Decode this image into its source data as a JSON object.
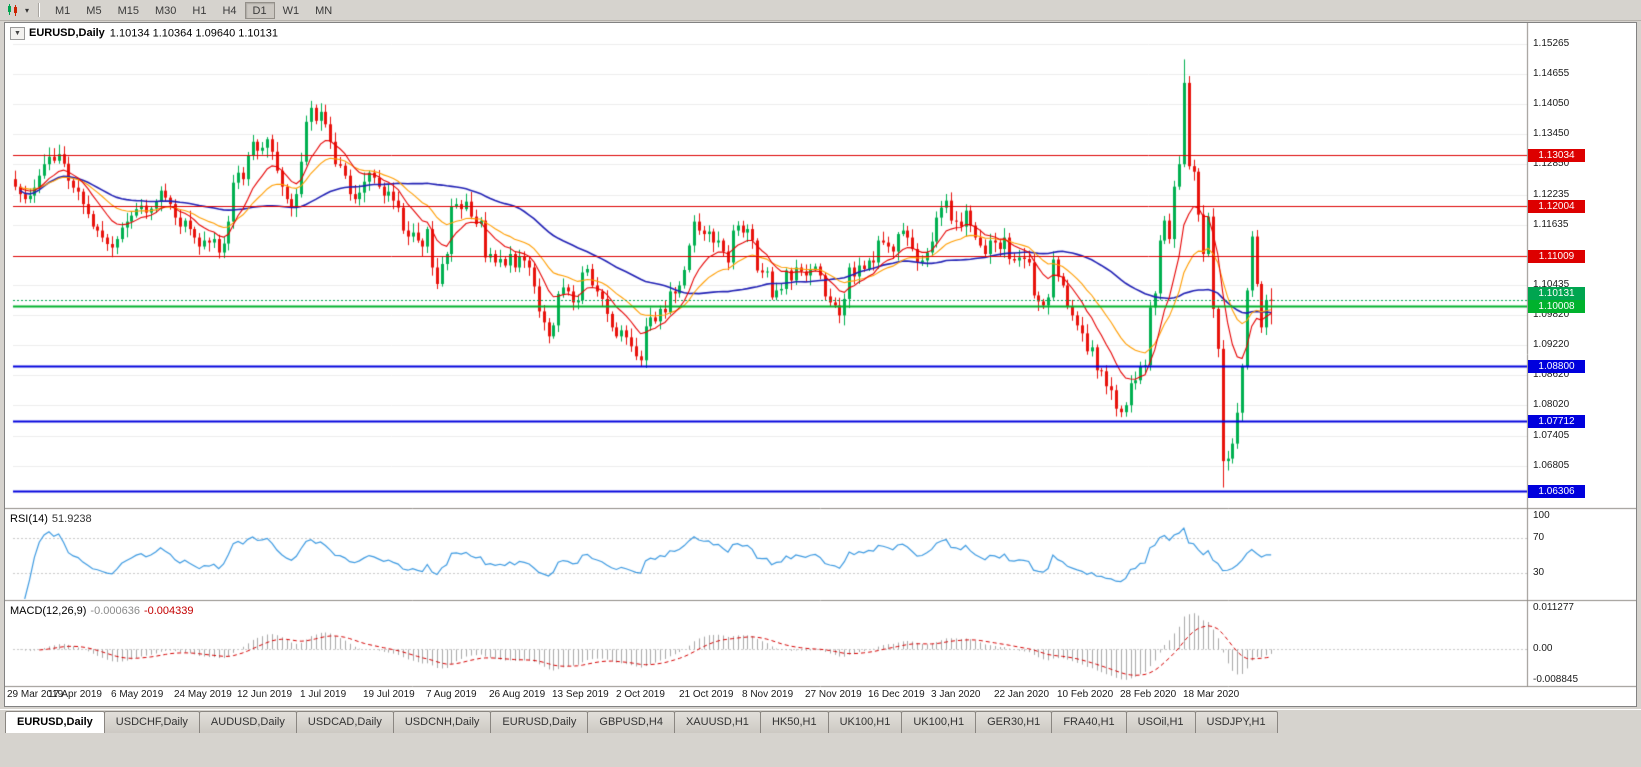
{
  "toolbar": {
    "timeframes": [
      "M1",
      "M5",
      "M15",
      "M30",
      "H1",
      "H4",
      "D1",
      "W1",
      "MN"
    ],
    "active_timeframe": "D1",
    "chart_type_icon": "candlestick-chart",
    "dropdown_icon": "chevron-down"
  },
  "chart": {
    "title_symbol": "EURUSD,Daily",
    "title_ohlc": "1.10134 1.10364 1.09640 1.10131"
  },
  "rsi": {
    "title": "RSI(14)",
    "value": "51.9238",
    "period": 14,
    "levels": [
      100,
      70,
      30
    ]
  },
  "macd": {
    "title": "MACD(12,26,9)",
    "value_main": "-0.000636",
    "value_signal": "-0.004339",
    "fast": 12,
    "slow": 26,
    "signal": 9,
    "max_label": "0.011277",
    "zero_label": "0.00",
    "min_label": "-0.008845"
  },
  "colors": {
    "up": "#00b050",
    "down": "#e8120c",
    "ma_fast": "#e60000",
    "ma_mid": "#ff9d00",
    "ma_slow": "#2020b4",
    "rsi_line": "#3d9ae1",
    "macd_hist": "#a8a8a8",
    "macd_signal": "#d40000",
    "grid": "#ececec",
    "separator": "#8f8b86",
    "axis_text": "#1a1a1a"
  },
  "chart_data": {
    "type": "candlestick",
    "symbol": "EURUSD",
    "timeframe": "Daily",
    "price_range": [
      1.0598,
      1.156
    ],
    "macd_range": [
      -0.008845,
      0.011277
    ],
    "y_ticks": [
      "1.15265",
      "1.14655",
      "1.14050",
      "1.13450",
      "1.12850",
      "1.12235",
      "1.11635",
      "1.10435",
      "1.09820",
      "1.09220",
      "1.08620",
      "1.08020",
      "1.07405",
      "1.06805"
    ],
    "x_label_step": 13,
    "x_labels": [
      "29 Mar 2019",
      "17 Apr 2019",
      "6 May 2019",
      "24 May 2019",
      "12 Jun 2019",
      "1 Jul 2019",
      "19 Jul 2019",
      "7 Aug 2019",
      "26 Aug 2019",
      "13 Sep 2019",
      "2 Oct 2019",
      "21 Oct 2019",
      "8 Nov 2019",
      "27 Nov 2019",
      "16 Dec 2019",
      "3 Jan 2020",
      "22 Jan 2020",
      "10 Feb 2020",
      "28 Feb 2020",
      "18 Mar 2020"
    ],
    "ma_periods": {
      "fast": 10,
      "mid": 21,
      "slow": 45
    },
    "levels": [
      {
        "price": 1.13034,
        "label": "1.13034",
        "color": "#dd0000",
        "width": 1
      },
      {
        "price": 1.12004,
        "label": "1.12004",
        "color": "#dd0000",
        "width": 1
      },
      {
        "price": 1.11009,
        "label": "1.11009",
        "color": "#dd0000",
        "width": 1
      },
      {
        "price": 1.10008,
        "label": "1.10008",
        "color": "#00b22d",
        "width": 2
      },
      {
        "price": 1.088,
        "label": "1.08800",
        "color": "#0000dd",
        "width": 2
      },
      {
        "price": 1.07712,
        "label": "1.07712",
        "color": "#0000dd",
        "width": 2
      },
      {
        "price": 1.06306,
        "label": "1.06306",
        "color": "#0000dd",
        "width": 2
      }
    ],
    "current_price": {
      "value": 1.10131,
      "label": "1.10131",
      "color": "#00a550"
    },
    "closes": [
      1.124,
      1.1225,
      1.1215,
      1.1222,
      1.1238,
      1.1262,
      1.1285,
      1.13,
      1.1292,
      1.1305,
      1.1286,
      1.1252,
      1.1238,
      1.123,
      1.1205,
      1.1185,
      1.116,
      1.1152,
      1.1138,
      1.1125,
      1.1118,
      1.1135,
      1.1158,
      1.117,
      1.1182,
      1.1195,
      1.1202,
      1.1188,
      1.1196,
      1.121,
      1.1232,
      1.1218,
      1.1205,
      1.1178,
      1.116,
      1.1172,
      1.1155,
      1.1138,
      1.112,
      1.1132,
      1.1128,
      1.1135,
      1.1108,
      1.1126,
      1.117,
      1.1248,
      1.1268,
      1.1255,
      1.1302,
      1.133,
      1.1312,
      1.1318,
      1.1335,
      1.131,
      1.1272,
      1.124,
      1.1215,
      1.1198,
      1.1225,
      1.129,
      1.137,
      1.1398,
      1.1372,
      1.139,
      1.1365,
      1.133,
      1.1285,
      1.1282,
      1.1262,
      1.1225,
      1.1215,
      1.1228,
      1.125,
      1.1268,
      1.1258,
      1.124,
      1.1222,
      1.123,
      1.1212,
      1.1198,
      1.1152,
      1.114,
      1.1148,
      1.1132,
      1.112,
      1.1155,
      1.1078,
      1.1045,
      1.1085,
      1.1105,
      1.12,
      1.1205,
      1.1195,
      1.121,
      1.118,
      1.1165,
      1.1172,
      1.1098,
      1.1105,
      1.1088,
      1.1095,
      1.1082,
      1.1105,
      1.1078,
      1.11,
      1.1092,
      1.1078,
      1.104,
      1.099,
      1.0968,
      1.094,
      1.0962,
      1.1025,
      1.1038,
      1.103,
      1.1008,
      1.1012,
      1.1068,
      1.1075,
      1.1042,
      1.103,
      1.1015,
      1.0985,
      1.0958,
      1.094,
      1.0952,
      1.0938,
      1.092,
      1.09,
      1.0892,
      1.096,
      1.0978,
      1.097,
      1.0995,
      1.0988,
      1.103,
      1.1026,
      1.1042,
      1.1073,
      1.1122,
      1.117,
      1.1152,
      1.1145,
      1.115,
      1.1128,
      1.1132,
      1.111,
      1.1088,
      1.1152,
      1.1162,
      1.1148,
      1.1155,
      1.1132,
      1.1072,
      1.1068,
      1.107,
      1.1018,
      1.1032,
      1.1035,
      1.1072,
      1.1052,
      1.1078,
      1.107,
      1.1062,
      1.1075,
      1.108,
      1.1062,
      1.102,
      1.1008,
      1.1002,
      1.0982,
      1.1015,
      1.1078,
      1.106,
      1.1082,
      1.1075,
      1.1092,
      1.1088,
      1.1132,
      1.1128,
      1.112,
      1.111,
      1.1145,
      1.1152,
      1.1138,
      1.1115,
      1.1088,
      1.1092,
      1.1108,
      1.113,
      1.1178,
      1.1198,
      1.1212,
      1.1172,
      1.117,
      1.116,
      1.1192,
      1.1162,
      1.1138,
      1.1122,
      1.1105,
      1.1132,
      1.1128,
      1.1115,
      1.1138,
      1.1095,
      1.1092,
      1.1098,
      1.1095,
      1.1088,
      1.1022,
      1.101,
      1.1002,
      1.1018,
      1.1094,
      1.106,
      1.1042,
      1.1,
      1.0982,
      1.0962,
      1.0946,
      1.091,
      1.0918,
      1.0872,
      1.087,
      1.084,
      1.0832,
      1.0795,
      1.0788,
      1.0802,
      1.0846,
      1.0852,
      1.088,
      1.0882,
      1.0998,
      1.1026,
      1.1132,
      1.1172,
      1.1135,
      1.124,
      1.1285,
      1.1448,
      1.1281,
      1.127,
      1.1184,
      1.1105,
      1.118,
      1.0995,
      1.0915,
      1.069,
      1.0695,
      1.0725,
      1.0787,
      1.088,
      1.1032,
      1.114,
      1.1045,
      1.0958,
      1.1013,
      1.10131
    ],
    "extremes": [
      {
        "i": 61,
        "high": 1.1412
      },
      {
        "i": 110,
        "low": 1.0926
      },
      {
        "i": 129,
        "low": 1.0879
      },
      {
        "i": 228,
        "low": 1.0778
      },
      {
        "i": 241,
        "high": 1.1495
      },
      {
        "i": 249,
        "low": 1.0637
      },
      {
        "i": 259,
        "open": 1.10134,
        "high": 1.10364,
        "low": 1.0964
      }
    ]
  },
  "tabs": [
    {
      "label": "EURUSD,Daily",
      "active": true
    },
    {
      "label": "USDCHF,Daily",
      "active": false
    },
    {
      "label": "AUDUSD,Daily",
      "active": false
    },
    {
      "label": "USDCAD,Daily",
      "active": false
    },
    {
      "label": "USDCNH,Daily",
      "active": false
    },
    {
      "label": "EURUSD,Daily",
      "active": false
    },
    {
      "label": "GBPUSD,H4",
      "active": false
    },
    {
      "label": "XAUUSD,H1",
      "active": false
    },
    {
      "label": "HK50,H1",
      "active": false
    },
    {
      "label": "UK100,H1",
      "active": false
    },
    {
      "label": "UK100,H1",
      "active": false
    },
    {
      "label": "GER30,H1",
      "active": false
    },
    {
      "label": "FRA40,H1",
      "active": false
    },
    {
      "label": "USOil,H1",
      "active": false
    },
    {
      "label": "USDJPY,H1",
      "active": false
    }
  ]
}
